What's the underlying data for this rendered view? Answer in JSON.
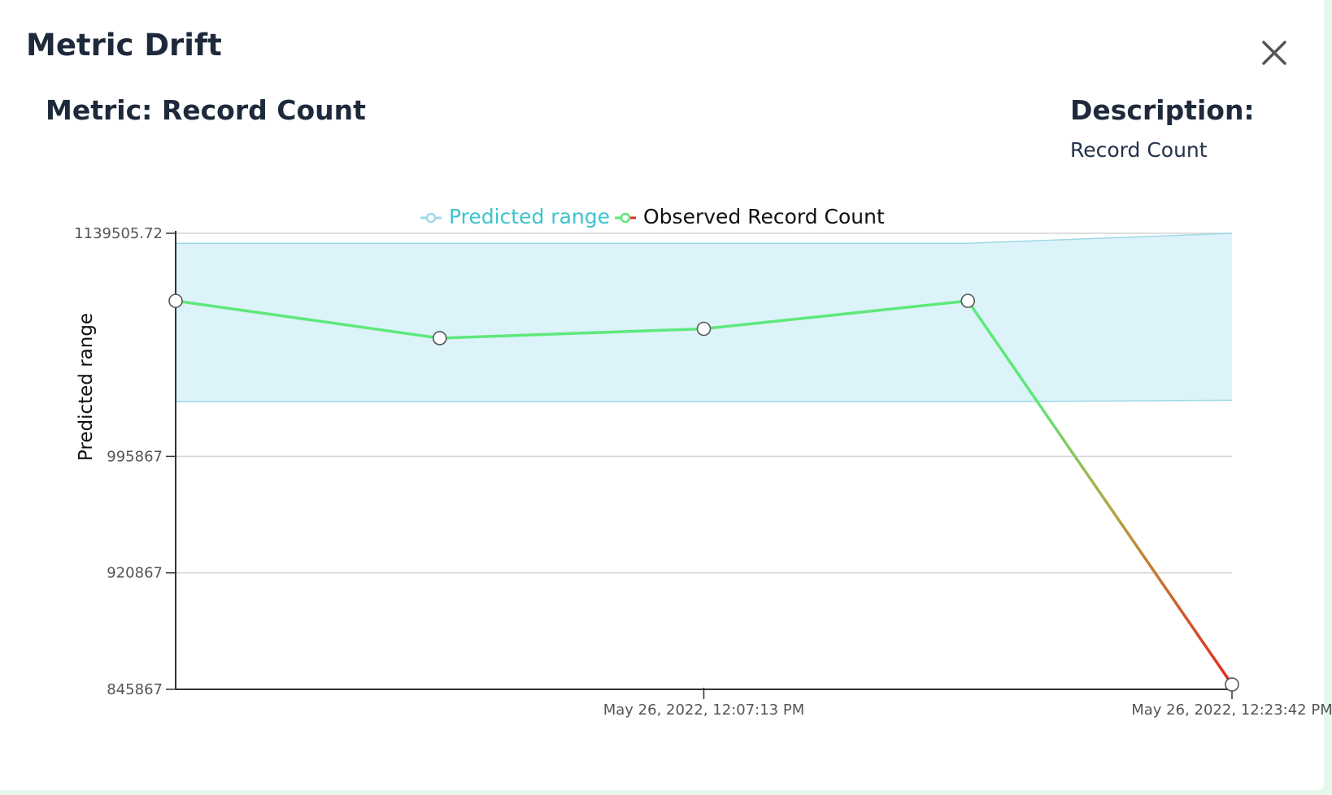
{
  "modal": {
    "title": "Metric Drift",
    "close_icon": "close-icon"
  },
  "metric": {
    "heading": "Metric: Record Count"
  },
  "description": {
    "heading": "Description:",
    "value": "Record Count"
  },
  "colors": {
    "band_fill": "#dcf3f9",
    "band_edge": "#9fd8e6",
    "observed_line": "#5ee87a",
    "anomaly_line": "#e02a1e",
    "axis": "#333333",
    "grid": "#d4d4d4"
  },
  "chart_data": {
    "type": "line",
    "title": "",
    "xlabel": "",
    "ylabel": "Predicted range",
    "legend": {
      "placement": "top",
      "entries": [
        "Predicted range",
        "Observed Record Count"
      ]
    },
    "ylim": [
      845867,
      1139505.72
    ],
    "yticks": [
      {
        "value": 845867,
        "label": "845867"
      },
      {
        "value": 920867,
        "label": "920867"
      },
      {
        "value": 995867,
        "label": "995867"
      },
      {
        "value": 1139505.72,
        "label": "1139505.72"
      }
    ],
    "xticks": [
      {
        "index": 2,
        "label": "May 26, 2022, 12:07:13 PM"
      },
      {
        "index": 4,
        "label": "May 26, 2022, 12:23:42 PM"
      }
    ],
    "grid": true,
    "series": [
      {
        "name": "Predicted range",
        "kind": "band",
        "upper": [
          1133100,
          1133100,
          1133100,
          1133100,
          1139505.72
        ],
        "lower": [
          1031000,
          1031000,
          1031000,
          1031000,
          1032000
        ]
      },
      {
        "name": "Observed Record Count",
        "kind": "line",
        "values": [
          1096000,
          1072000,
          1078000,
          1096000,
          849000
        ]
      }
    ]
  }
}
